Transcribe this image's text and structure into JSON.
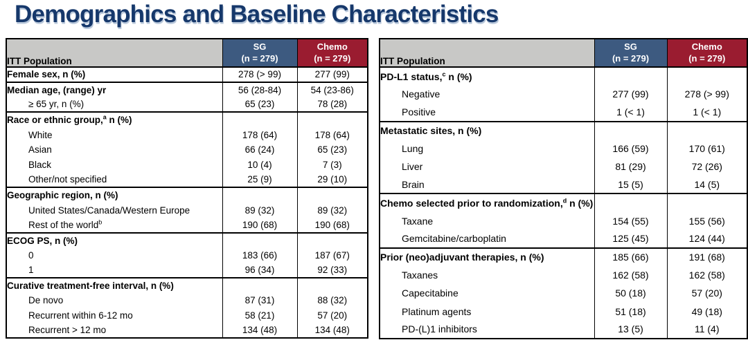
{
  "title": "Demographics and Baseline Characteristics",
  "colors": {
    "title_navy": "#16386B",
    "header_gray": "#C8C8C6",
    "sg_blue": "#3D5A80",
    "chemo_red": "#9A1C30",
    "border_black": "#000000"
  },
  "tables": [
    {
      "id": "left",
      "header": {
        "population": "ITT Population",
        "sg_name": "SG",
        "sg_n": "(n = 279)",
        "chemo_name": "Chemo",
        "chemo_n": "(n = 279)"
      },
      "groups": [
        {
          "rows": [
            {
              "label": "Female sex, n (%)",
              "bold": true,
              "sg": "278 (> 99)",
              "chemo": "277 (99)"
            }
          ]
        },
        {
          "rows": [
            {
              "label": "Median age, (range) yr",
              "bold": true,
              "sg": "56 (28-84)",
              "chemo": "54 (23-86)"
            },
            {
              "label": "≥ 65 yr, n (%)",
              "indent": true,
              "sg": "65 (23)",
              "chemo": "78 (28)"
            }
          ]
        },
        {
          "rows": [
            {
              "label": "Race or ethnic group,",
              "sup": "a",
              "label_post": " n (%)",
              "bold": true,
              "sg": "",
              "chemo": ""
            },
            {
              "label": "White",
              "indent": true,
              "sg": "178 (64)",
              "chemo": "178 (64)"
            },
            {
              "label": "Asian",
              "indent": true,
              "sg": "66 (24)",
              "chemo": "65 (23)"
            },
            {
              "label": "Black",
              "indent": true,
              "sg": "10 (4)",
              "chemo": "7 (3)"
            },
            {
              "label": "Other/not specified",
              "indent": true,
              "sg": "25 (9)",
              "chemo": "29 (10)"
            }
          ]
        },
        {
          "rows": [
            {
              "label": "Geographic region, n (%)",
              "bold": true,
              "sg": "",
              "chemo": ""
            },
            {
              "label": "United States/Canada/Western Europe",
              "indent": true,
              "sg": "89 (32)",
              "chemo": "89 (32)"
            },
            {
              "label": "Rest of the world",
              "sup": "b",
              "indent": true,
              "sg": "190 (68)",
              "chemo": "190 (68)"
            }
          ]
        },
        {
          "rows": [
            {
              "label": "ECOG PS, n (%)",
              "bold": true,
              "sg": "",
              "chemo": ""
            },
            {
              "label": "0",
              "indent": true,
              "sg": "183 (66)",
              "chemo": "187 (67)"
            },
            {
              "label": "1",
              "indent": true,
              "sg": "96 (34)",
              "chemo": "92 (33)"
            }
          ]
        },
        {
          "rows": [
            {
              "label": "Curative treatment-free interval, n (%)",
              "bold": true,
              "sg": "",
              "chemo": ""
            },
            {
              "label": "De novo",
              "indent": true,
              "sg": "87 (31)",
              "chemo": "88 (32)"
            },
            {
              "label": "Recurrent within 6-12 mo",
              "indent": true,
              "sg": "58 (21)",
              "chemo": "57 (20)"
            },
            {
              "label": "Recurrent > 12 mo",
              "indent": true,
              "sg": "134 (48)",
              "chemo": "134 (48)"
            }
          ]
        }
      ]
    },
    {
      "id": "right",
      "header": {
        "population": "ITT Population",
        "sg_name": "SG",
        "sg_n": "(n = 279)",
        "chemo_name": "Chemo",
        "chemo_n": "(n = 279)"
      },
      "groups": [
        {
          "rows": [
            {
              "label": "PD-L1 status,",
              "sup": "c",
              "label_post": " n (%)",
              "bold": true,
              "sg": "",
              "chemo": ""
            },
            {
              "label": "Negative",
              "indent": true,
              "sg": "277 (99)",
              "chemo": "278 (> 99)"
            },
            {
              "label": "Positive",
              "indent": true,
              "sg": "1 (< 1)",
              "chemo": "1 (< 1)"
            }
          ]
        },
        {
          "rows": [
            {
              "label": "Metastatic sites, n (%)",
              "bold": true,
              "sg": "",
              "chemo": ""
            },
            {
              "label": "Lung",
              "indent": true,
              "sg": "166 (59)",
              "chemo": "170 (61)"
            },
            {
              "label": "Liver",
              "indent": true,
              "sg": "81 (29)",
              "chemo": "72 (26)"
            },
            {
              "label": "Brain",
              "indent": true,
              "sg": "15 (5)",
              "chemo": "14 (5)"
            }
          ]
        },
        {
          "rows": [
            {
              "label": "Chemo selected prior to randomization,",
              "sup": "d",
              "label_post": " n (%)",
              "bold": true,
              "sg": "",
              "chemo": ""
            },
            {
              "label": "Taxane",
              "indent": true,
              "sg": "154 (55)",
              "chemo": "155 (56)"
            },
            {
              "label": "Gemcitabine/carboplatin",
              "indent": true,
              "sg": "125 (45)",
              "chemo": "124 (44)"
            }
          ]
        },
        {
          "rows": [
            {
              "label": "Prior (neo)adjuvant therapies, n (%)",
              "bold": true,
              "sg": "185 (66)",
              "chemo": "191 (68)"
            },
            {
              "label": "Taxanes",
              "indent": true,
              "sg": "162 (58)",
              "chemo": "162 (58)"
            },
            {
              "label": "Capecitabine",
              "indent": true,
              "sg": "50 (18)",
              "chemo": "57 (20)"
            },
            {
              "label": "Platinum agents",
              "indent": true,
              "sg": "51 (18)",
              "chemo": "49 (18)"
            },
            {
              "label": "PD-(L)1 inhibitors",
              "indent": true,
              "sg": "13 (5)",
              "chemo": "11 (4)"
            }
          ]
        }
      ]
    }
  ]
}
